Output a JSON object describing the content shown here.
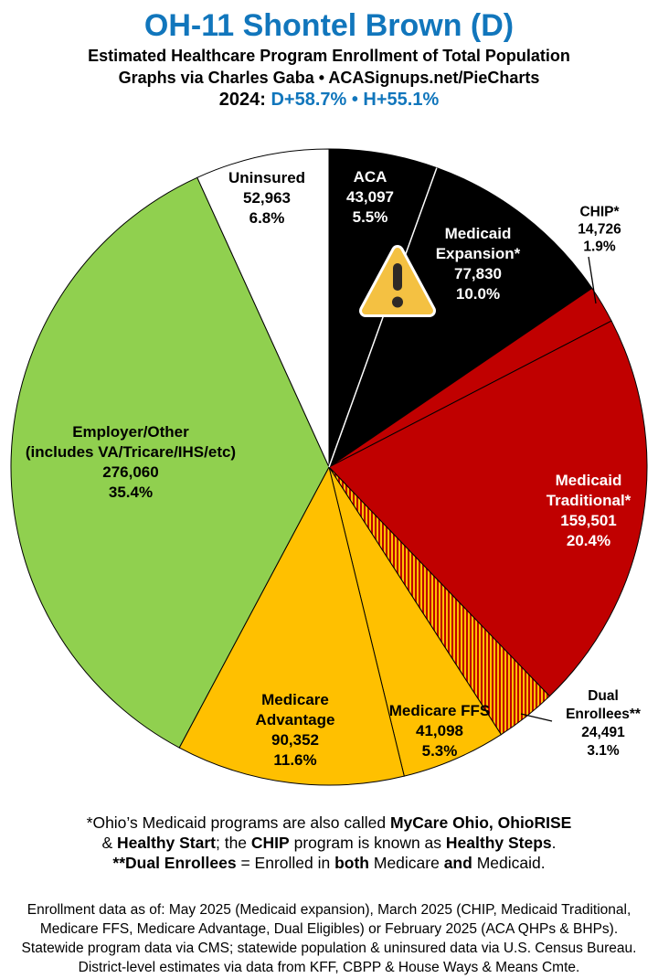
{
  "header": {
    "title": "OH-11 Shontel Brown (D)",
    "subtitle": "Estimated Healthcare Program Enrollment of Total Population",
    "credit": "Graphs via Charles Gaba   •   ACASignups.net/PieCharts",
    "lean_segments": [
      {
        "t": "2024: ",
        "c": "#000000"
      },
      {
        "t": "D+58.7%",
        "c": "#1176BC"
      },
      {
        "t": "  •  ",
        "c": "#1176BC"
      },
      {
        "t": "H+55.1%",
        "c": "#1176BC"
      }
    ]
  },
  "colors": {
    "title_blue": "#1176BC",
    "black_slice": "#000000",
    "red_slice": "#C00000",
    "gold_slice": "#FFC000",
    "green_slice": "#90D04F",
    "white_slice": "#FFFFFF",
    "warning_gold": "#F4C142"
  },
  "chart_data": {
    "type": "pie",
    "title": "OH-11 Shontel Brown (D)",
    "subtitle": "Estimated Healthcare Program Enrollment of Total Population",
    "direction": "clockwise",
    "start_angle_deg": 0,
    "legend_position": "none",
    "slices": [
      {
        "name": "ACA",
        "value": 43097,
        "pct": 5.5,
        "color": "#000000",
        "text_color": "#FFFFFF",
        "label_lines": [
          "ACA",
          "43,097",
          "5.5%"
        ],
        "label_outside": false
      },
      {
        "name": "Medicaid Expansion*",
        "value": 77830,
        "pct": 10.0,
        "color": "#000000",
        "text_color": "#FFFFFF",
        "label_lines": [
          "Medicaid",
          "Expansion*",
          "77,830",
          "10.0%"
        ],
        "label_outside": false
      },
      {
        "name": "CHIP*",
        "value": 14726,
        "pct": 1.9,
        "color": "#C00000",
        "text_color": "#000000",
        "label_lines": [
          "CHIP*",
          "14,726",
          "1.9%"
        ],
        "label_outside": true
      },
      {
        "name": "Medicaid Traditional*",
        "value": 159501,
        "pct": 20.4,
        "color": "#C00000",
        "text_color": "#FFFFFF",
        "label_lines": [
          "Medicaid",
          "Traditional*",
          "159,501",
          "20.4%"
        ],
        "label_outside": false
      },
      {
        "name": "Dual Enrollees**",
        "value": 24491,
        "pct": 3.1,
        "color": "stripes",
        "stripe_colors": [
          "#C00000",
          "#FFC000"
        ],
        "text_color": "#000000",
        "label_lines": [
          "Dual Enrollees**",
          "24,491 3.1%"
        ],
        "label_outside": true
      },
      {
        "name": "Medicare FFS",
        "value": 41098,
        "pct": 5.3,
        "color": "#FFC000",
        "text_color": "#000000",
        "label_lines": [
          "Medicare FFS",
          "41,098",
          "5.3%"
        ],
        "label_outside": false
      },
      {
        "name": "Medicare Advantage",
        "value": 90352,
        "pct": 11.6,
        "color": "#FFC000",
        "text_color": "#000000",
        "label_lines": [
          "Medicare",
          "Advantage",
          "90,352",
          "11.6%"
        ],
        "label_outside": false
      },
      {
        "name": "Employer/Other (includes VA/Tricare/IHS/etc)",
        "value": 276060,
        "pct": 35.4,
        "color": "#90D04F",
        "text_color": "#000000",
        "label_lines": [
          "Employer/Other",
          "(includes VA/Tricare/IHS/etc)",
          "276,060",
          "35.4%"
        ],
        "label_outside": false
      },
      {
        "name": "Uninsured",
        "value": 52963,
        "pct": 6.8,
        "color": "#FFFFFF",
        "text_color": "#000000",
        "label_lines": [
          "Uninsured",
          "52,963",
          "6.8%"
        ],
        "label_outside": false
      }
    ],
    "divider_line": {
      "after_slice_index": 0,
      "color": "#FFFFFF"
    }
  },
  "footnotes": [
    [
      {
        "t": "*Ohio’s Medicaid programs are also called "
      },
      {
        "t": "MyCare Ohio, OhioRISE",
        "b": true
      }
    ],
    [
      {
        "t": "& "
      },
      {
        "t": "Healthy Start",
        "b": true
      },
      {
        "t": "; the "
      },
      {
        "t": "CHIP",
        "b": true
      },
      {
        "t": " program is known as "
      },
      {
        "t": "Healthy Steps",
        "b": true
      },
      {
        "t": "."
      }
    ],
    [
      {
        "t": "**Dual Enrollees",
        "b": true
      },
      {
        "t": " = Enrolled in "
      },
      {
        "t": "both",
        "b": true
      },
      {
        "t": " Medicare "
      },
      {
        "t": "and",
        "b": true
      },
      {
        "t": " Medicaid."
      }
    ]
  ],
  "sources": [
    "Enrollment data as of: May 2025 (Medicaid expansion), March 2025 (CHIP, Medicaid Traditional,",
    "Medicare FFS, Medicare Advantage, Dual Eligibles) or February 2025 (ACA QHPs & BHPs).",
    "Statewide program data via CMS; statewide population & uninsured data via U.S. Census Bureau.",
    "District-level estimates via data from KFF, CBPP & House Ways & Means Cmte."
  ]
}
